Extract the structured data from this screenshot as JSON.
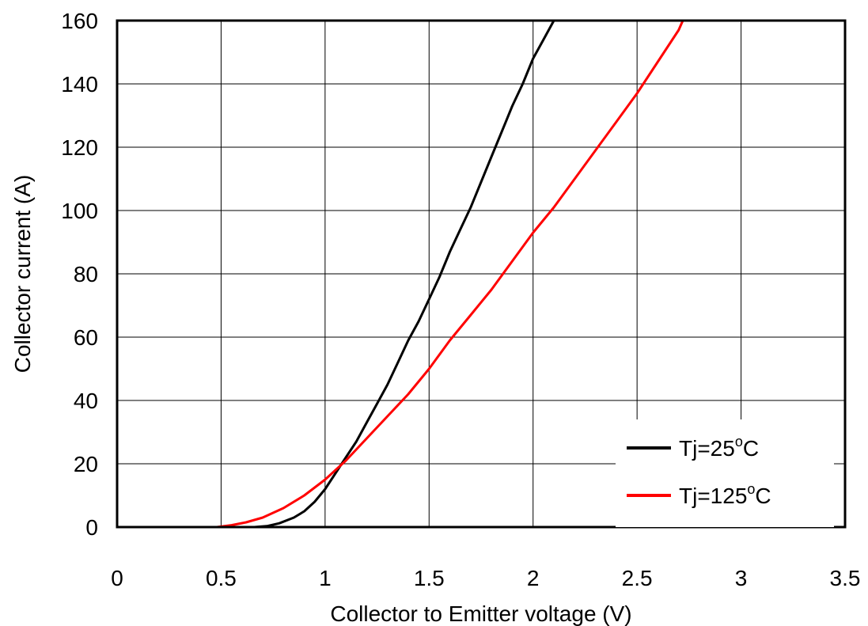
{
  "chart_data": {
    "type": "line",
    "xlabel": "Collector to Emitter voltage (V)",
    "ylabel": "Collector current (A)",
    "xlim": [
      0,
      3.5
    ],
    "ylim": [
      0,
      160
    ],
    "x_ticks": [
      "0",
      "0.5",
      "1",
      "1.5",
      "2",
      "2.5",
      "3",
      "3.5"
    ],
    "y_ticks": [
      "0",
      "20",
      "40",
      "60",
      "80",
      "100",
      "120",
      "140",
      "160"
    ],
    "x_tick_values": [
      0,
      0.5,
      1,
      1.5,
      2,
      2.5,
      3,
      3.5
    ],
    "y_tick_values": [
      0,
      20,
      40,
      60,
      80,
      100,
      120,
      140,
      160
    ],
    "grid": true,
    "legend_position": "bottom-right",
    "series": [
      {
        "name_prefix": "Tj=25",
        "name_sup": "o",
        "name_suffix": "C",
        "color": "#000000",
        "points": [
          [
            0.66,
            0
          ],
          [
            0.72,
            0.3
          ],
          [
            0.78,
            1.2
          ],
          [
            0.85,
            3
          ],
          [
            0.9,
            5
          ],
          [
            0.95,
            8
          ],
          [
            1.0,
            12
          ],
          [
            1.05,
            17
          ],
          [
            1.1,
            22
          ],
          [
            1.15,
            27
          ],
          [
            1.2,
            33
          ],
          [
            1.25,
            39
          ],
          [
            1.3,
            45
          ],
          [
            1.35,
            52
          ],
          [
            1.4,
            59
          ],
          [
            1.45,
            65
          ],
          [
            1.5,
            72
          ],
          [
            1.55,
            79
          ],
          [
            1.6,
            87
          ],
          [
            1.65,
            94
          ],
          [
            1.7,
            101
          ],
          [
            1.75,
            109
          ],
          [
            1.8,
            117
          ],
          [
            1.85,
            125
          ],
          [
            1.9,
            133
          ],
          [
            1.95,
            140
          ],
          [
            2.0,
            148
          ],
          [
            2.05,
            154
          ],
          [
            2.1,
            160
          ],
          [
            2.17,
            160
          ]
        ]
      },
      {
        "name_prefix": "Tj=125",
        "name_sup": "o",
        "name_suffix": "C",
        "color": "#ff0000",
        "points": [
          [
            0.48,
            0
          ],
          [
            0.55,
            0.6
          ],
          [
            0.62,
            1.5
          ],
          [
            0.7,
            3
          ],
          [
            0.8,
            6
          ],
          [
            0.9,
            10
          ],
          [
            1.0,
            15
          ],
          [
            1.1,
            21
          ],
          [
            1.2,
            28
          ],
          [
            1.3,
            35
          ],
          [
            1.4,
            42
          ],
          [
            1.5,
            50
          ],
          [
            1.6,
            59
          ],
          [
            1.7,
            67
          ],
          [
            1.8,
            75
          ],
          [
            1.9,
            84
          ],
          [
            2.0,
            93
          ],
          [
            2.1,
            101
          ],
          [
            2.2,
            110
          ],
          [
            2.3,
            119
          ],
          [
            2.4,
            128
          ],
          [
            2.5,
            137
          ],
          [
            2.6,
            147
          ],
          [
            2.7,
            157
          ],
          [
            2.72,
            160
          ]
        ]
      }
    ]
  }
}
